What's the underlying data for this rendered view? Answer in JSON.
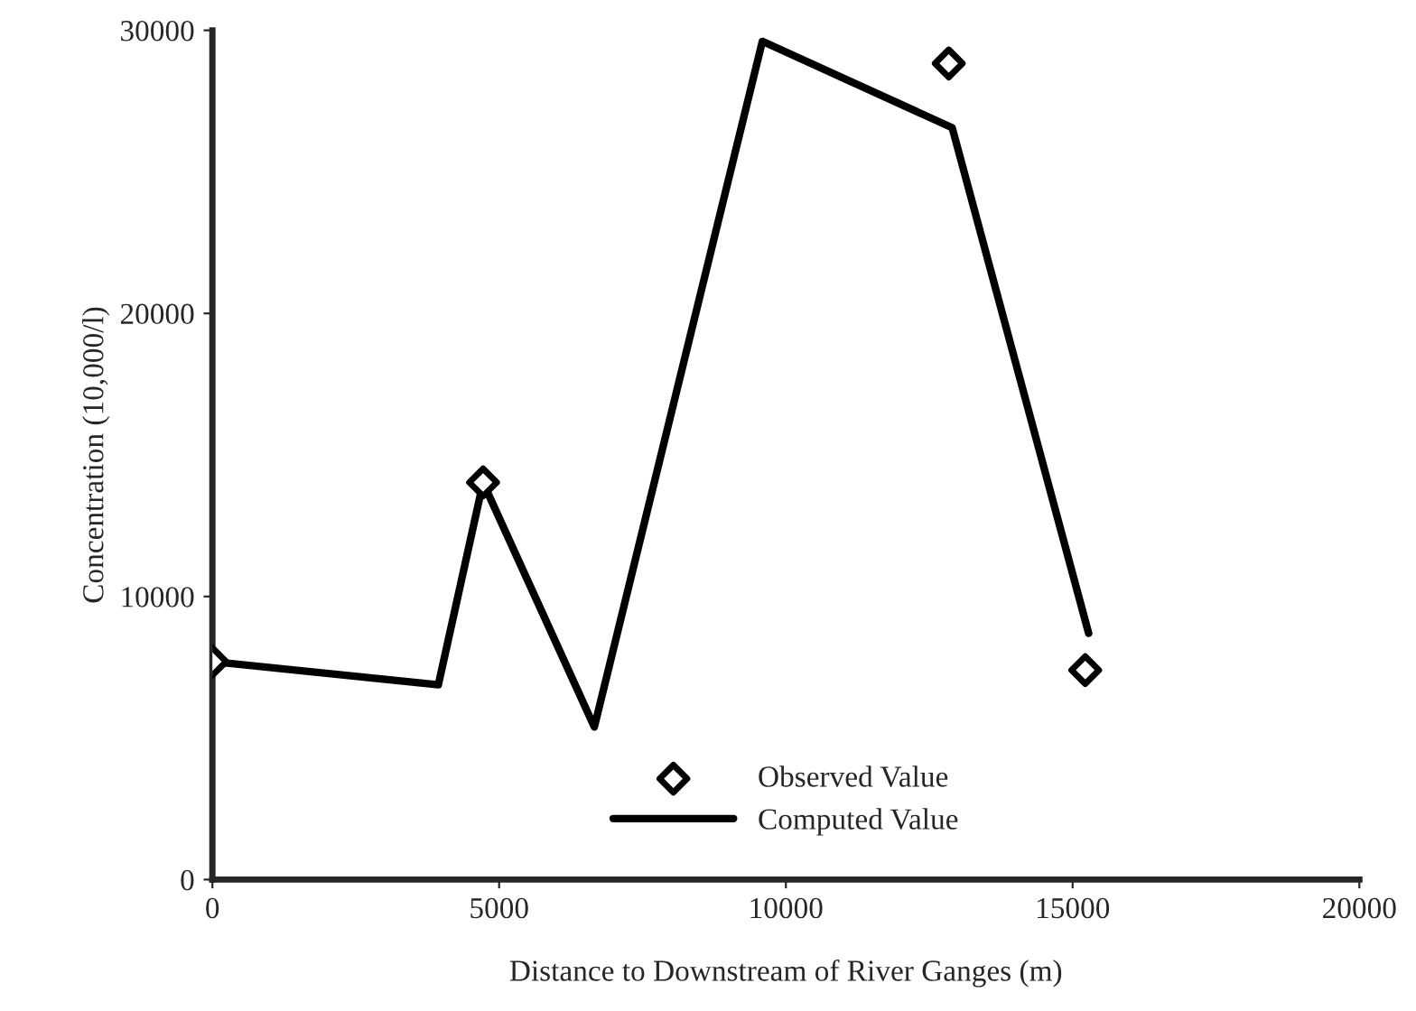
{
  "chart_data": {
    "type": "line",
    "xlabel": "Distance to Downstream of River Ganges (m)",
    "ylabel": "Concentration (10,000/l)",
    "series": [
      {
        "name": "Observed Value",
        "type": "scatter",
        "color": "#000000",
        "marker": "diamond",
        "x": [
          0,
          4720,
          12840,
          15220
        ],
        "values": [
          7700,
          14030,
          28830,
          7400
        ]
      },
      {
        "name": "Computed Value",
        "color": "#000000",
        "marker": "none",
        "line_style": "solid",
        "x": [
          0,
          3940,
          4720,
          6660,
          9590,
          12900,
          15280
        ],
        "values": [
          7700,
          6880,
          14030,
          5390,
          29610,
          26560,
          8700
        ]
      }
    ],
    "xlim": [
      0,
      20000
    ],
    "ylim": [
      0,
      30000
    ],
    "xticks": [
      0,
      5000,
      10000,
      15000,
      20000
    ],
    "yticks": [
      0,
      10000,
      20000,
      30000
    ],
    "grid": false,
    "legend": "bottom"
  }
}
